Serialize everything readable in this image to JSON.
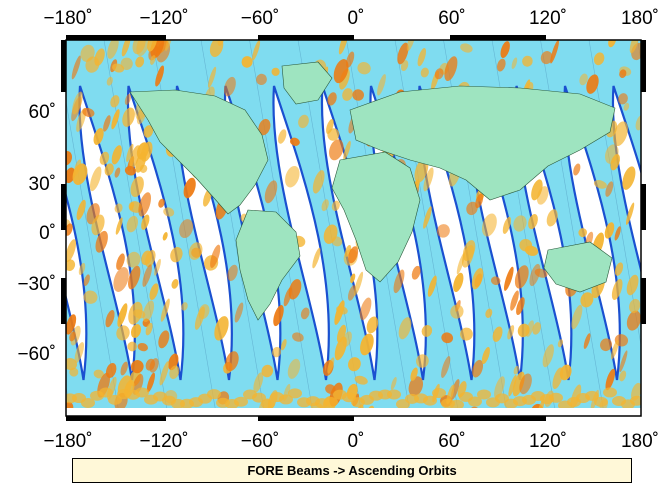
{
  "caption": "FORE Beams -> Ascending Orbits",
  "lon_ticks": [
    "−180˚",
    "−120˚",
    "−60˚",
    "0˚",
    "60˚",
    "120˚",
    "180˚"
  ],
  "lat_ticks": [
    "60˚",
    "30˚",
    "0˚",
    "−30˚",
    "−60˚"
  ],
  "colors": {
    "swath_base": "#7fdcf0",
    "swath_high": "#f4b430",
    "swath_peak": "#ee7a10",
    "beam_edge": "#1a50d0",
    "land": "#9ee4c0",
    "frame": "#000000",
    "caption_bg": "#fff8d8"
  }
}
